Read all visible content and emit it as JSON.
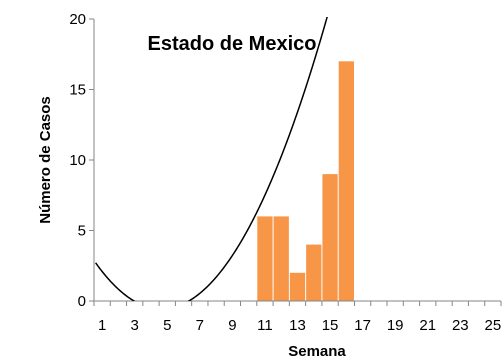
{
  "chart_data": {
    "type": "bar",
    "title": "Estado de Mexico",
    "xlabel": "Semana",
    "ylabel": "Número de Casos",
    "ylim": [
      0,
      20
    ],
    "yticks": [
      0,
      5,
      10,
      15,
      20
    ],
    "xlim": [
      0.5,
      25.5
    ],
    "xtick_labels": [
      1,
      3,
      5,
      7,
      9,
      11,
      13,
      15,
      17,
      19,
      21,
      23,
      25
    ],
    "grid": false,
    "legend": "none",
    "bar_color": "#F79646",
    "series": [
      {
        "type": "bar",
        "x": [
          11,
          12,
          13,
          14,
          15,
          16
        ],
        "values": [
          6,
          6,
          2,
          4,
          9,
          17
        ]
      },
      {
        "type": "line",
        "trendline": "polynomial",
        "coefficients": [
          3.75,
          -1.858,
          0.2
        ],
        "color": "#000000"
      }
    ]
  }
}
